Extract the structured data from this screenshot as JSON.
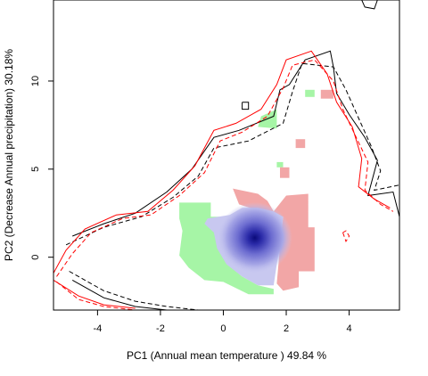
{
  "chart_data": {
    "type": "heatmap",
    "title": "",
    "xlabel": "PC1 (Annual mean temperature ) 49.84 %",
    "ylabel": "PC2 (Decrease Annual precipitation) 30.18%",
    "xlim": [
      -5.4,
      5.6
    ],
    "ylim": [
      -3.0,
      14.6
    ],
    "xticks": [
      -4,
      -2,
      0,
      2,
      4
    ],
    "yticks": [
      0,
      5,
      10
    ],
    "grid": false,
    "legend": "none",
    "colors": {
      "niche_a_only": "#a6f5a6",
      "niche_b_only": "#f2a6a6",
      "overlap_density": "#0a0a7a",
      "overlap_low": "#c8c8f0",
      "contour_a": "#000000",
      "contour_b": "#ff0000"
    },
    "density_peak": {
      "x": 1.0,
      "y": 1.1
    },
    "regions": {
      "green_only": [
        [
          -1.4,
          3.1
        ],
        [
          -0.4,
          3.1
        ],
        [
          -0.4,
          2.3
        ],
        [
          0.1,
          2.3
        ],
        [
          -0.2,
          1.4
        ],
        [
          -0.1,
          0.5
        ],
        [
          0.2,
          -0.5
        ],
        [
          0.6,
          -1.1
        ],
        [
          1.1,
          -1.6
        ],
        [
          1.6,
          -1.8
        ],
        [
          1.6,
          -2.1
        ],
        [
          0.8,
          -2.1
        ],
        [
          0.0,
          -1.4
        ],
        [
          -0.6,
          -1.3
        ],
        [
          -1.1,
          -0.6
        ],
        [
          -1.4,
          0.1
        ],
        [
          -1.3,
          1.5
        ],
        [
          -1.4,
          2.2
        ]
      ],
      "red_only": [
        [
          0.3,
          3.9
        ],
        [
          1.1,
          3.6
        ],
        [
          1.4,
          3.2
        ],
        [
          1.6,
          2.6
        ],
        [
          2.0,
          3.5
        ],
        [
          2.7,
          3.6
        ],
        [
          2.7,
          1.7
        ],
        [
          2.9,
          1.7
        ],
        [
          2.9,
          -0.8
        ],
        [
          2.4,
          -0.8
        ],
        [
          2.4,
          -1.7
        ],
        [
          1.9,
          -1.9
        ],
        [
          1.7,
          -1.5
        ],
        [
          1.8,
          0.6
        ],
        [
          1.9,
          2.3
        ],
        [
          1.2,
          2.6
        ],
        [
          0.5,
          3.0
        ]
      ],
      "overlap": [
        [
          -0.5,
          2.2
        ],
        [
          0.2,
          2.4
        ],
        [
          0.6,
          2.8
        ],
        [
          1.1,
          2.8
        ],
        [
          1.6,
          2.6
        ],
        [
          1.9,
          2.3
        ],
        [
          1.8,
          0.8
        ],
        [
          1.7,
          -0.4
        ],
        [
          1.6,
          -1.6
        ],
        [
          1.1,
          -1.6
        ],
        [
          0.6,
          -1.1
        ],
        [
          0.1,
          -0.4
        ],
        [
          -0.2,
          0.5
        ],
        [
          -0.3,
          1.4
        ],
        [
          -0.6,
          1.9
        ]
      ],
      "green_patches": [
        [
          [
            1.2,
            8.0
          ],
          [
            1.7,
            8.4
          ],
          [
            1.7,
            7.3
          ],
          [
            1.1,
            7.4
          ]
        ],
        [
          [
            2.6,
            9.5
          ],
          [
            2.9,
            9.5
          ],
          [
            2.9,
            9.1
          ],
          [
            2.6,
            9.1
          ]
        ],
        [
          [
            1.7,
            5.4
          ],
          [
            1.9,
            5.4
          ],
          [
            1.9,
            5.1
          ],
          [
            1.7,
            5.1
          ]
        ]
      ],
      "red_patches": [
        [
          [
            3.1,
            9.5
          ],
          [
            3.5,
            9.5
          ],
          [
            3.5,
            9.0
          ],
          [
            3.1,
            9.0
          ]
        ],
        [
          [
            2.3,
            6.7
          ],
          [
            2.6,
            6.7
          ],
          [
            2.6,
            6.2
          ],
          [
            2.3,
            6.2
          ]
        ],
        [
          [
            1.8,
            5.1
          ],
          [
            2.1,
            5.1
          ],
          [
            2.1,
            4.5
          ],
          [
            1.8,
            4.5
          ]
        ]
      ]
    },
    "contours": [
      {
        "color": "black",
        "dash": "solid",
        "points": [
          [
            -4.8,
            1.2
          ],
          [
            -3.8,
            1.9
          ],
          [
            -2.8,
            2.5
          ],
          [
            -1.8,
            3.7
          ],
          [
            -1.0,
            5.0
          ],
          [
            -0.3,
            6.8
          ],
          [
            0.5,
            7.2
          ],
          [
            1.6,
            8.0
          ],
          [
            1.8,
            9.5
          ],
          [
            2.1,
            9.8
          ],
          [
            2.6,
            11.2
          ],
          [
            3.4,
            11.7
          ],
          [
            3.5,
            10.8
          ],
          [
            3.6,
            9.3
          ],
          [
            4.0,
            8.1
          ],
          [
            4.5,
            6.8
          ],
          [
            4.9,
            5.5
          ],
          [
            4.6,
            3.5
          ],
          [
            5.4,
            3.7
          ],
          [
            5.6,
            2.3
          ]
        ]
      },
      {
        "color": "black",
        "dash": "solid",
        "points": [
          [
            -4.8,
            -1.3
          ],
          [
            -3.8,
            -2.3
          ],
          [
            -2.8,
            -2.8
          ],
          [
            -1.8,
            -3.0
          ],
          [
            -1.0,
            -3.0
          ]
        ]
      },
      {
        "color": "black",
        "dash": "dashed",
        "points": [
          [
            -5.0,
            0.7
          ],
          [
            -3.8,
            1.7
          ],
          [
            -2.6,
            2.3
          ],
          [
            -1.6,
            3.4
          ],
          [
            -0.8,
            4.6
          ],
          [
            -0.3,
            6.2
          ],
          [
            0.8,
            6.6
          ],
          [
            1.9,
            7.6
          ],
          [
            2.2,
            9.4
          ],
          [
            2.5,
            11.0
          ],
          [
            3.5,
            10.8
          ],
          [
            3.9,
            9.5
          ],
          [
            4.3,
            7.9
          ],
          [
            4.7,
            6.3
          ],
          [
            5.0,
            4.9
          ],
          [
            4.8,
            3.8
          ],
          [
            5.6,
            4.1
          ]
        ]
      },
      {
        "color": "black",
        "dash": "dashed",
        "points": [
          [
            -4.9,
            -0.8
          ],
          [
            -3.8,
            -1.9
          ],
          [
            -2.8,
            -2.5
          ],
          [
            -1.8,
            -2.8
          ],
          [
            -0.8,
            -3.0
          ]
        ]
      },
      {
        "color": "red",
        "dash": "solid",
        "points": [
          [
            -5.4,
            -0.9
          ],
          [
            -5.0,
            0.4
          ],
          [
            -4.4,
            1.6
          ],
          [
            -3.4,
            2.4
          ],
          [
            -2.4,
            2.6
          ],
          [
            -1.6,
            3.8
          ],
          [
            -0.9,
            5.2
          ],
          [
            -0.3,
            7.2
          ],
          [
            0.4,
            7.6
          ],
          [
            1.2,
            8.4
          ],
          [
            1.7,
            9.8
          ],
          [
            2.0,
            11.2
          ],
          [
            2.8,
            11.7
          ],
          [
            3.3,
            10.4
          ],
          [
            3.6,
            8.8
          ],
          [
            4.1,
            7.4
          ],
          [
            4.4,
            5.6
          ],
          [
            4.3,
            4.0
          ],
          [
            4.8,
            3.3
          ],
          [
            5.3,
            2.8
          ]
        ]
      },
      {
        "color": "red",
        "dash": "dashed",
        "points": [
          [
            -5.3,
            -1.1
          ],
          [
            -4.8,
            0.2
          ],
          [
            -4.2,
            1.4
          ],
          [
            -3.2,
            2.2
          ],
          [
            -2.3,
            2.4
          ],
          [
            -1.4,
            3.5
          ],
          [
            -0.6,
            4.8
          ],
          [
            -0.1,
            6.6
          ],
          [
            0.6,
            7.1
          ],
          [
            1.4,
            8.0
          ],
          [
            1.9,
            9.6
          ],
          [
            2.2,
            10.9
          ],
          [
            2.9,
            11.2
          ],
          [
            3.5,
            10.0
          ],
          [
            3.8,
            8.4
          ],
          [
            4.2,
            6.9
          ],
          [
            4.6,
            5.4
          ],
          [
            4.5,
            3.8
          ],
          [
            5.0,
            3.0
          ],
          [
            5.4,
            2.6
          ]
        ]
      },
      {
        "color": "red",
        "dash": "dashed",
        "points": [
          [
            3.8,
            1.4
          ],
          [
            3.9,
            0.9
          ],
          [
            4.0,
            1.2
          ],
          [
            3.9,
            1.5
          ],
          [
            3.8,
            1.4
          ]
        ]
      },
      {
        "color": "red",
        "dash": "dashed",
        "points": [
          [
            -5.3,
            -1.4
          ],
          [
            -4.6,
            -2.4
          ],
          [
            -3.8,
            -2.8
          ],
          [
            -2.8,
            -3.0
          ],
          [
            -2.0,
            -3.0
          ]
        ]
      },
      {
        "color": "red",
        "dash": "solid",
        "points": [
          [
            -5.4,
            -1.3
          ],
          [
            -4.6,
            -2.2
          ],
          [
            -3.8,
            -2.7
          ],
          [
            -2.8,
            -2.9
          ]
        ]
      },
      {
        "color": "black",
        "dash": "solid",
        "points": [
          [
            0.6,
            8.8
          ],
          [
            0.8,
            8.8
          ],
          [
            0.8,
            8.4
          ],
          [
            0.6,
            8.4
          ],
          [
            0.6,
            8.8
          ]
        ]
      },
      {
        "color": "black",
        "dash": "solid",
        "points": [
          [
            4.4,
            14.6
          ],
          [
            4.5,
            14.2
          ],
          [
            4.8,
            14.1
          ],
          [
            4.9,
            14.6
          ]
        ]
      }
    ]
  }
}
